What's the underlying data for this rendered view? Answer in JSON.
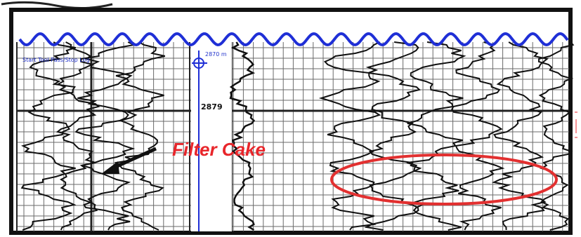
{
  "log": {
    "annotation_text": "Filter Cake",
    "depth_marker": "2879",
    "top_depth_label": "2870 m",
    "top_left_label": "Start Tool Pass/Stop Log",
    "colors": {
      "frame": "#111111",
      "grid": "#555555",
      "curve": "#111111",
      "wave": "#1f2fd6",
      "depth_line": "#1f2fd6",
      "callout": "#e8262b",
      "highlight_ellipse": "#e23030"
    }
  }
}
